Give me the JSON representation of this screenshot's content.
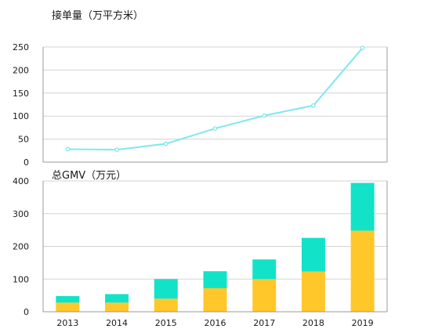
{
  "chart_data": [
    {
      "type": "line",
      "title": "接单量（万平方米）",
      "xlabel": "",
      "ylabel": "",
      "categories": [
        "2013",
        "2014",
        "2015",
        "2016",
        "2017",
        "2018",
        "2019"
      ],
      "series": [
        {
          "values": [
            28,
            27,
            40,
            73,
            101,
            123,
            248
          ]
        }
      ],
      "ylim": [
        0,
        250
      ],
      "yticks": [
        0,
        50,
        100,
        150,
        200,
        250
      ],
      "grid": true,
      "show_x_tick_labels": false,
      "colors": {
        "line": "#7ee8f0",
        "marker_fill": "#ffffff"
      }
    },
    {
      "type": "bar",
      "stacked": true,
      "title": "总GMV（万元）",
      "xlabel": "",
      "ylabel": "",
      "categories": [
        "2013",
        "2014",
        "2015",
        "2016",
        "2017",
        "2018",
        "2019"
      ],
      "series": [
        {
          "values": [
            28,
            28,
            40,
            72,
            100,
            123,
            248
          ],
          "color": "#ffc72a"
        },
        {
          "values": [
            20,
            26,
            60,
            52,
            60,
            103,
            146
          ],
          "color": "#12e3c8"
        }
      ],
      "ylim": [
        0,
        400
      ],
      "yticks": [
        0,
        100,
        200,
        300,
        400
      ],
      "grid": true,
      "legend": "none"
    }
  ]
}
